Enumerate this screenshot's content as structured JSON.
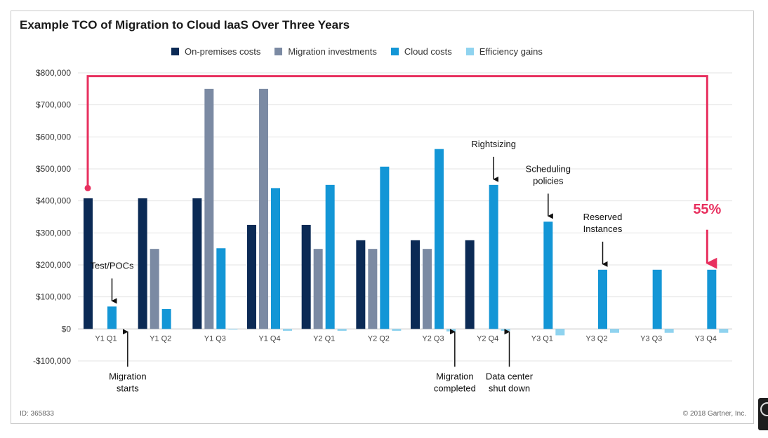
{
  "chart_data": {
    "type": "bar",
    "title": "Example TCO of Migration to Cloud IaaS Over Three Years",
    "categories": [
      "Y1 Q1",
      "Y1 Q2",
      "Y1 Q3",
      "Y1 Q4",
      "Y2 Q1",
      "Y2 Q2",
      "Y2 Q3",
      "Y2 Q4",
      "Y3 Q1",
      "Y3 Q2",
      "Y3 Q3",
      "Y3 Q4"
    ],
    "series": [
      {
        "name": "On-premises costs",
        "color": "#0b2a55",
        "values": [
          408000,
          408000,
          408000,
          325000,
          325000,
          277000,
          277000,
          277000,
          0,
          0,
          0,
          0
        ]
      },
      {
        "name": "Migration investments",
        "color": "#7b8aa3",
        "values": [
          0,
          250000,
          750000,
          750000,
          250000,
          250000,
          250000,
          0,
          0,
          0,
          0,
          0
        ]
      },
      {
        "name": "Cloud costs",
        "color": "#1396d6",
        "values": [
          70000,
          62000,
          252000,
          440000,
          450000,
          507000,
          562000,
          450000,
          335000,
          185000,
          185000,
          185000
        ]
      },
      {
        "name": "Efficiency gains",
        "color": "#8fd3ef",
        "values": [
          0,
          0,
          -2000,
          -6000,
          -6000,
          -6000,
          -8000,
          -6000,
          -20000,
          -12000,
          -12000,
          -12000
        ]
      }
    ],
    "ylim": [
      -100000,
      800000
    ],
    "yticks": [
      -100000,
      0,
      100000,
      200000,
      300000,
      400000,
      500000,
      600000,
      700000,
      800000
    ],
    "ytick_labels": [
      "-$100,000",
      "$0",
      "$100,000",
      "$200,000",
      "$300,000",
      "$400,000",
      "$500,000",
      "$600,000",
      "$700,000",
      "$800,000"
    ],
    "grid": true,
    "legend": "top",
    "annotations": [
      {
        "id": "test-pocs",
        "lines": [
          "Test/POCs"
        ],
        "category": 0,
        "direction": "down",
        "value": 70000
      },
      {
        "id": "migration-starts",
        "lines": [
          "Migration",
          "starts"
        ],
        "category": 0,
        "direction": "up",
        "offset": 0.5
      },
      {
        "id": "rightsizing",
        "lines": [
          "Rightsizing"
        ],
        "category": 7,
        "direction": "down",
        "value": 450000
      },
      {
        "id": "scheduling-policies",
        "lines": [
          "Scheduling",
          "policies"
        ],
        "category": 8,
        "direction": "down",
        "value": 335000
      },
      {
        "id": "reserved-instances",
        "lines": [
          "Reserved",
          "Instances"
        ],
        "category": 9,
        "direction": "down",
        "value": 185000
      },
      {
        "id": "migration-completed",
        "lines": [
          "Migration",
          "completed"
        ],
        "category": 6,
        "direction": "up",
        "offset": 0.5
      },
      {
        "id": "data-center-shut-down",
        "lines": [
          "Data center",
          "shut down"
        ],
        "category": 7,
        "direction": "up",
        "offset": 0.5
      }
    ],
    "savings_callout": {
      "label": "55%",
      "color": "#e8305f"
    }
  },
  "footer": {
    "id_text": "ID: 365833",
    "copyright": "© 2018 Gartner, Inc."
  }
}
